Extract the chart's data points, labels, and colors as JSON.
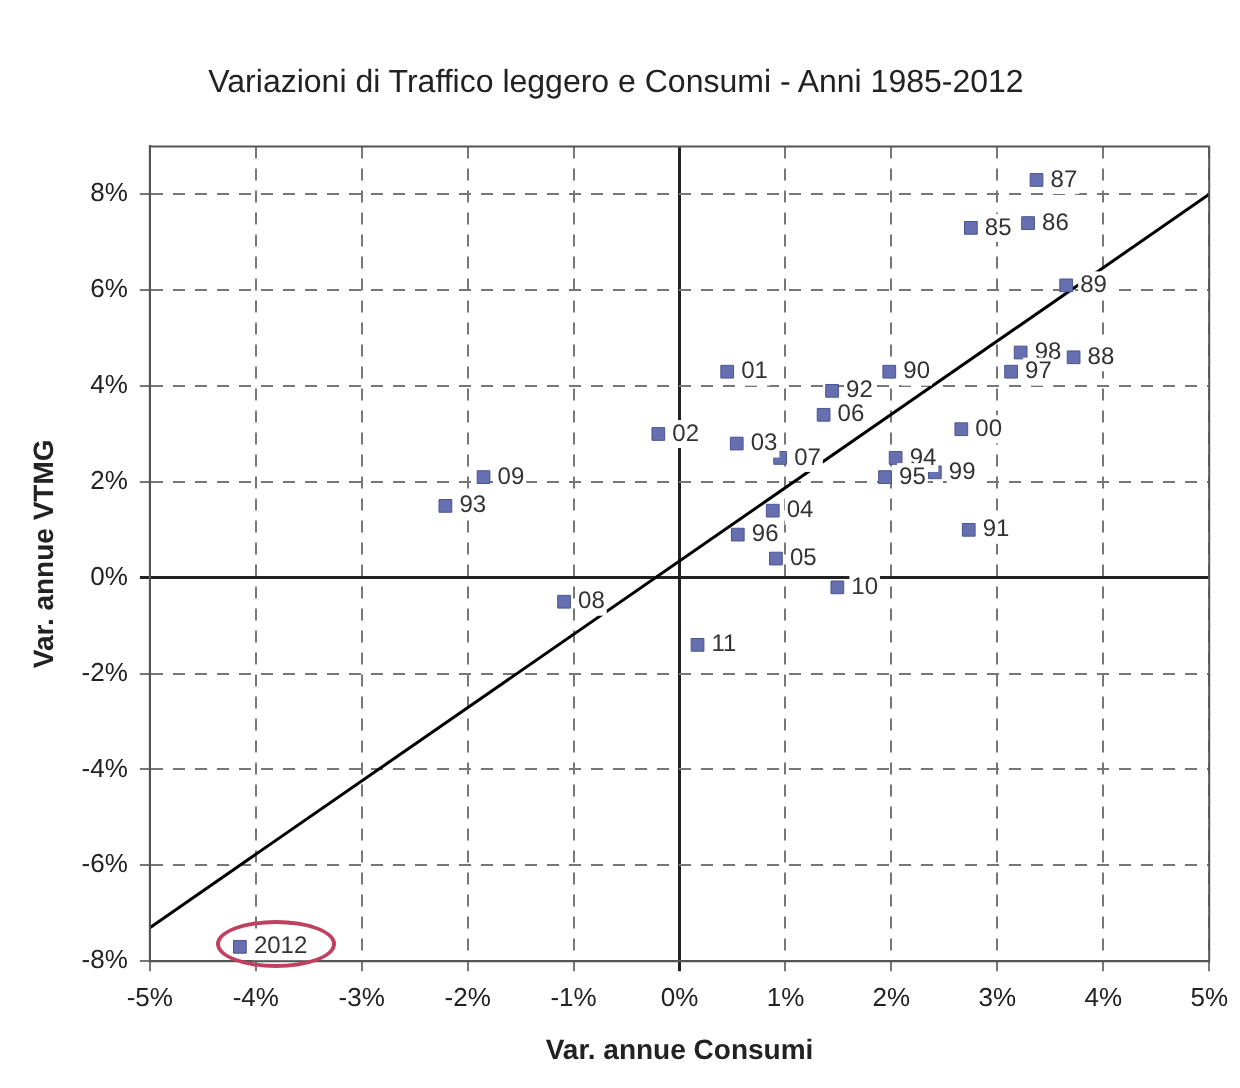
{
  "chart_data": {
    "type": "scatter",
    "title": "Variazioni di Traffico leggero e Consumi - Anni 1985-2012",
    "xlabel": "Var. annue Consumi",
    "ylabel": "Var. annue VTMG",
    "xlim": [
      -5,
      5
    ],
    "xticks": [
      {
        "value": -5,
        "label": "-5%"
      },
      {
        "value": -4,
        "label": "-4%"
      },
      {
        "value": -3,
        "label": "-3%"
      },
      {
        "value": -2,
        "label": "-2%"
      },
      {
        "value": -1,
        "label": "-1%"
      },
      {
        "value": 0,
        "label": "0%"
      },
      {
        "value": 1,
        "label": "1%"
      },
      {
        "value": 2,
        "label": "2%"
      },
      {
        "value": 3,
        "label": "3%"
      },
      {
        "value": 4,
        "label": "4%"
      },
      {
        "value": 5,
        "label": "5%"
      }
    ],
    "ylim": [
      -8,
      9
    ],
    "yticks": [
      {
        "value": -8,
        "label": "-8%"
      },
      {
        "value": -6,
        "label": "-6%"
      },
      {
        "value": -4,
        "label": "-4%"
      },
      {
        "value": -2,
        "label": "-2%"
      },
      {
        "value": 0,
        "label": "0%"
      },
      {
        "value": 2,
        "label": "2%"
      },
      {
        "value": 4,
        "label": "4%"
      },
      {
        "value": 6,
        "label": "6%"
      },
      {
        "value": 8,
        "label": "8%"
      }
    ],
    "grid": true,
    "legend": false,
    "marker": "square",
    "series": [
      {
        "type": "scatter",
        "color": "#6670b0",
        "x": [
          3.37,
          2.75,
          3.29,
          3.65,
          3.72,
          3.22,
          3.13,
          0.45,
          1.44,
          1.98,
          1.36,
          2.66,
          -0.2,
          0.54,
          0.95,
          2.04,
          1.94,
          2.41,
          0.88,
          0.55,
          0.91,
          1.49,
          0.17,
          2.73,
          -1.85,
          -2.21,
          -1.09,
          -4.15
        ],
        "values": [
          8.3,
          7.3,
          7.4,
          6.1,
          4.6,
          4.7,
          4.3,
          4.3,
          3.9,
          4.3,
          3.4,
          3.1,
          3.0,
          2.8,
          2.5,
          2.5,
          2.1,
          2.2,
          1.4,
          0.9,
          0.4,
          -0.2,
          -1.4,
          1.0,
          2.1,
          1.5,
          -0.5,
          -7.7
        ]
      },
      {
        "type": "line",
        "color": "#000000",
        "marker": "none",
        "x": [
          -5,
          5
        ],
        "values": [
          -7.3,
          8.0
        ]
      }
    ],
    "annotations": [
      {
        "text": "87",
        "x": 3.37,
        "y": 8.3
      },
      {
        "text": "85",
        "x": 2.75,
        "y": 7.3
      },
      {
        "text": "86",
        "x": 3.29,
        "y": 7.4
      },
      {
        "text": "89",
        "x": 3.65,
        "y": 6.1
      },
      {
        "text": "88",
        "x": 3.72,
        "y": 4.6
      },
      {
        "text": "98",
        "x": 3.22,
        "y": 4.7
      },
      {
        "text": "97",
        "x": 3.13,
        "y": 4.3
      },
      {
        "text": "01",
        "x": 0.45,
        "y": 4.3
      },
      {
        "text": "92",
        "x": 1.44,
        "y": 3.9
      },
      {
        "text": "90",
        "x": 1.98,
        "y": 4.3
      },
      {
        "text": "06",
        "x": 1.36,
        "y": 3.4
      },
      {
        "text": "00",
        "x": 2.66,
        "y": 3.1
      },
      {
        "text": "02",
        "x": -0.2,
        "y": 3.0
      },
      {
        "text": "03",
        "x": 0.54,
        "y": 2.8
      },
      {
        "text": "07",
        "x": 0.95,
        "y": 2.5
      },
      {
        "text": "94",
        "x": 2.04,
        "y": 2.5
      },
      {
        "text": "95",
        "x": 1.94,
        "y": 2.1
      },
      {
        "text": "99",
        "x": 2.41,
        "y": 2.2
      },
      {
        "text": "04",
        "x": 0.88,
        "y": 1.4
      },
      {
        "text": "96",
        "x": 0.55,
        "y": 0.9
      },
      {
        "text": "05",
        "x": 0.91,
        "y": 0.4
      },
      {
        "text": "10",
        "x": 1.49,
        "y": -0.2
      },
      {
        "text": "11",
        "x": 0.17,
        "y": -1.4
      },
      {
        "text": "91",
        "x": 2.73,
        "y": 1.0
      },
      {
        "text": "09",
        "x": -1.85,
        "y": 2.1
      },
      {
        "text": "93",
        "x": -2.21,
        "y": 1.5
      },
      {
        "text": "08",
        "x": -1.09,
        "y": -0.5
      },
      {
        "text": "2012",
        "x": -4.15,
        "y": -7.7
      }
    ]
  }
}
